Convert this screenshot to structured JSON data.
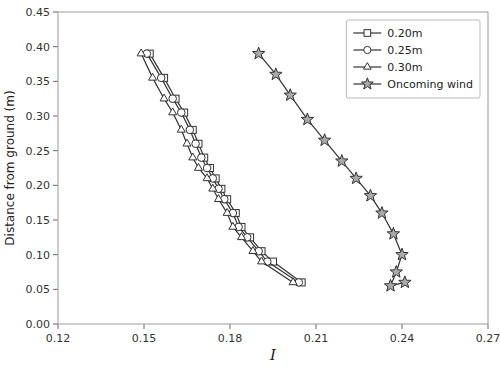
{
  "chart_data": {
    "type": "line",
    "xlabel": "I",
    "ylabel": "Distance from ground (m)",
    "xlim": [
      0.12,
      0.27
    ],
    "ylim": [
      0.0,
      0.45
    ],
    "xticks": [
      0.12,
      0.15,
      0.18,
      0.21,
      0.24,
      0.27
    ],
    "yticks": [
      {
        "value": 0.0,
        "label": "0.00"
      },
      0.05,
      {
        "value": 0.1,
        "label": "0.10"
      },
      0.15,
      {
        "value": 0.2,
        "label": "0.20"
      },
      0.25,
      {
        "value": 0.3,
        "label": "0.30"
      },
      0.35,
      {
        "value": 0.4,
        "label": "0.40"
      },
      0.45
    ],
    "grid": false,
    "legend": "upper right",
    "series": [
      {
        "name": "0.20m",
        "color": "#333333",
        "marker": "square",
        "x": [
          0.152,
          0.157,
          0.161,
          0.164,
          0.167,
          0.169,
          0.171,
          0.173,
          0.175,
          0.177,
          0.179,
          0.182,
          0.184,
          0.187,
          0.191,
          0.195,
          0.205
        ],
        "values": [
          0.39,
          0.355,
          0.325,
          0.305,
          0.28,
          0.26,
          0.24,
          0.225,
          0.21,
          0.195,
          0.18,
          0.16,
          0.14,
          0.125,
          0.105,
          0.09,
          0.06
        ]
      },
      {
        "name": "0.25m",
        "color": "#333333",
        "marker": "circle",
        "x": [
          0.151,
          0.156,
          0.16,
          0.163,
          0.166,
          0.168,
          0.17,
          0.172,
          0.174,
          0.176,
          0.178,
          0.181,
          0.183,
          0.186,
          0.19,
          0.193,
          0.204
        ],
        "values": [
          0.39,
          0.355,
          0.325,
          0.305,
          0.28,
          0.26,
          0.24,
          0.225,
          0.21,
          0.195,
          0.18,
          0.16,
          0.14,
          0.125,
          0.105,
          0.09,
          0.06
        ]
      },
      {
        "name": "0.30m",
        "color": "#333333",
        "marker": "triangle",
        "x": [
          0.149,
          0.153,
          0.157,
          0.16,
          0.163,
          0.165,
          0.167,
          0.169,
          0.172,
          0.174,
          0.176,
          0.179,
          0.181,
          0.184,
          0.188,
          0.191,
          0.202
        ],
        "values": [
          0.39,
          0.355,
          0.325,
          0.305,
          0.28,
          0.26,
          0.24,
          0.225,
          0.21,
          0.195,
          0.18,
          0.16,
          0.14,
          0.125,
          0.105,
          0.09,
          0.06
        ]
      },
      {
        "name": "Oncoming wind",
        "color": "#333333",
        "marker": "star",
        "x": [
          0.19,
          0.196,
          0.201,
          0.207,
          0.213,
          0.219,
          0.224,
          0.229,
          0.233,
          0.237,
          0.24,
          0.238,
          0.236,
          0.241
        ],
        "values": [
          0.39,
          0.36,
          0.33,
          0.295,
          0.265,
          0.235,
          0.21,
          0.185,
          0.16,
          0.13,
          0.1,
          0.075,
          0.055,
          0.06
        ]
      }
    ]
  }
}
